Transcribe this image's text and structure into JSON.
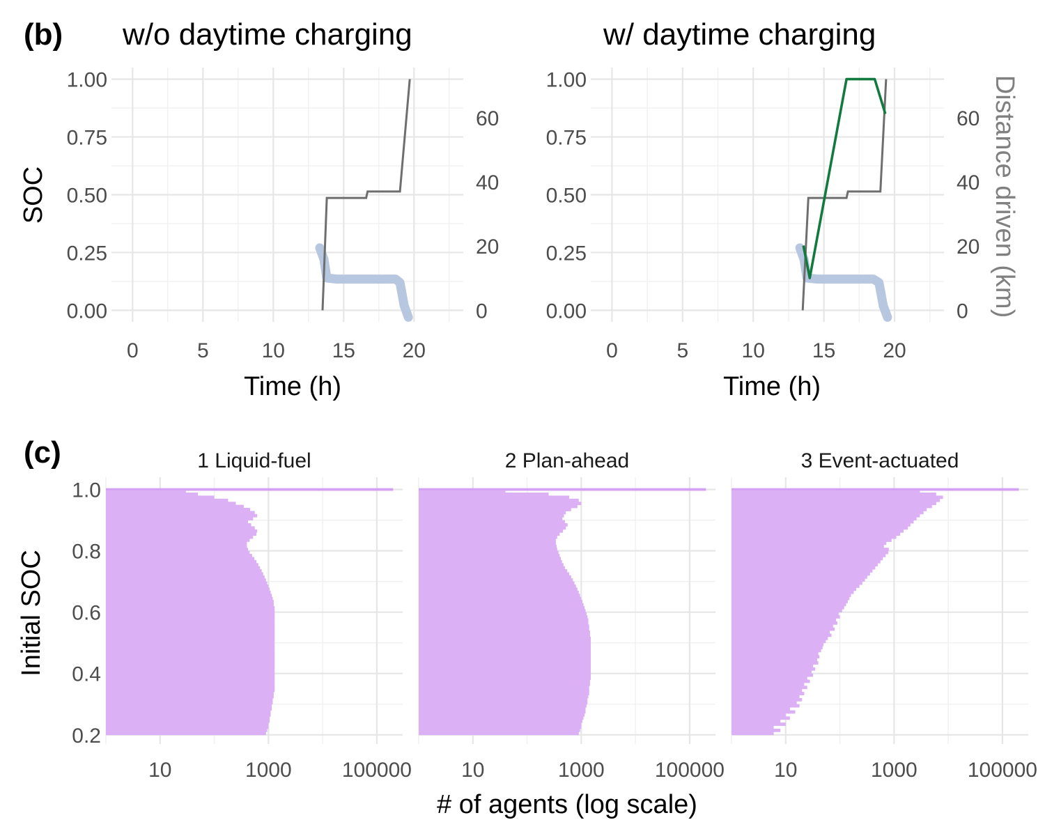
{
  "panels": {
    "b": {
      "tag": "(b)",
      "titles": [
        "w/o daytime charging",
        "w/ daytime charging"
      ],
      "ylabel": "SOC",
      "ylabel_right": "Distance driven (km)",
      "xlabel": "Time (h)"
    },
    "c": {
      "tag": "(c)",
      "ylabel": "Initial SOC",
      "xlabel": "# of agents (log scale)",
      "facets": [
        "1 Liquid-fuel",
        "2 Plan-ahead",
        "3 Event-actuated"
      ]
    }
  },
  "colors": {
    "soc_band": "#b8c7e0",
    "distance_line": "#6e6e6e",
    "charging_line": "#137a3f",
    "histogram_fill": "#dcb0f5",
    "histogram_edge": "#cf9ef0"
  },
  "chart_data": [
    {
      "type": "line",
      "panel": "(b) w/o daytime charging",
      "title": "w/o daytime charging",
      "xlabel": "Time (h)",
      "ylabel": "SOC",
      "ylabel_right": "Distance driven (km)",
      "xlim": [
        -1.5,
        23.5
      ],
      "ylim": [
        -0.05,
        1.05
      ],
      "y2lim": [
        -3.6,
        75.6
      ],
      "x_ticks": [
        0,
        5,
        10,
        15,
        20
      ],
      "y_ticks": [
        0.0,
        0.25,
        0.5,
        0.75,
        1.0
      ],
      "y_tick_labels": [
        "0.00",
        "0.25",
        "0.50",
        "0.75",
        "1.00"
      ],
      "y2_ticks": [
        0,
        20,
        40,
        60
      ],
      "grid": true,
      "series": [
        {
          "axis": "left",
          "style": "band",
          "x": [
            13.3,
            13.6,
            13.8,
            14.5,
            16.0,
            17.5,
            18.7,
            19.0,
            19.3,
            19.6
          ],
          "y": [
            0.27,
            0.22,
            0.14,
            0.135,
            0.135,
            0.135,
            0.135,
            0.12,
            0.02,
            -0.03
          ]
        },
        {
          "axis": "right",
          "style": "line",
          "x": [
            13.5,
            13.8,
            13.9,
            16.6,
            16.7,
            18.9,
            19.0,
            19.7
          ],
          "y": [
            0,
            35,
            35,
            35,
            37,
            37,
            37,
            72
          ]
        }
      ]
    },
    {
      "type": "line",
      "panel": "(b) w/ daytime charging",
      "title": "w/ daytime charging",
      "xlabel": "Time (h)",
      "ylabel": "SOC",
      "ylabel_right": "Distance driven (km)",
      "xlim": [
        -1.5,
        23.5
      ],
      "ylim": [
        -0.05,
        1.05
      ],
      "y2lim": [
        -3.6,
        75.6
      ],
      "x_ticks": [
        0,
        5,
        10,
        15,
        20
      ],
      "y_ticks": [
        0.0,
        0.25,
        0.5,
        0.75,
        1.0
      ],
      "y_tick_labels": [
        "0.00",
        "0.25",
        "0.50",
        "0.75",
        "1.00"
      ],
      "y2_ticks": [
        0,
        20,
        40,
        60
      ],
      "grid": true,
      "series": [
        {
          "axis": "left",
          "style": "band",
          "x": [
            13.3,
            13.6,
            13.8,
            14.5,
            16.0,
            17.5,
            18.5,
            18.9,
            19.2,
            19.5
          ],
          "y": [
            0.27,
            0.22,
            0.14,
            0.135,
            0.135,
            0.135,
            0.135,
            0.12,
            0.02,
            -0.03
          ]
        },
        {
          "axis": "right",
          "style": "line",
          "x": [
            13.5,
            13.9,
            14.0,
            16.6,
            16.7,
            18.9,
            19.0,
            19.4
          ],
          "y": [
            0,
            35,
            35,
            35,
            37,
            37,
            37,
            72
          ]
        },
        {
          "axis": "left",
          "style": "charging",
          "x": [
            13.55,
            14.0,
            16.6,
            18.6,
            19.35
          ],
          "y": [
            0.28,
            0.14,
            1.0,
            1.0,
            0.85
          ]
        }
      ]
    },
    {
      "type": "bar",
      "orientation": "horizontal",
      "panel": "(c) 1 Liquid-fuel",
      "title": "1 Liquid-fuel",
      "xlabel": "# of agents (log scale)",
      "ylabel": "Initial SOC",
      "x_scale": "log",
      "xlim": [
        1,
        300000
      ],
      "ylim": [
        0.17,
        1.04
      ],
      "x_ticks": [
        10,
        1000,
        100000
      ],
      "y_ticks": [
        0.2,
        0.4,
        0.6,
        0.8,
        1.0
      ],
      "grid": true,
      "bins": [
        0.2,
        0.21,
        0.22,
        0.23,
        0.24,
        0.25,
        0.26,
        0.27,
        0.28,
        0.29,
        0.3,
        0.31,
        0.32,
        0.33,
        0.34,
        0.35,
        0.36,
        0.37,
        0.38,
        0.39,
        0.4,
        0.41,
        0.42,
        0.43,
        0.44,
        0.45,
        0.46,
        0.47,
        0.48,
        0.49,
        0.5,
        0.51,
        0.52,
        0.53,
        0.54,
        0.55,
        0.56,
        0.57,
        0.58,
        0.59,
        0.6,
        0.61,
        0.62,
        0.63,
        0.64,
        0.65,
        0.66,
        0.67,
        0.68,
        0.69,
        0.7,
        0.71,
        0.72,
        0.73,
        0.74,
        0.75,
        0.76,
        0.77,
        0.78,
        0.79,
        0.8,
        0.81,
        0.82,
        0.83,
        0.84,
        0.85,
        0.86,
        0.87,
        0.88,
        0.89,
        0.9,
        0.91,
        0.92,
        0.93,
        0.94,
        0.95,
        0.96,
        0.97,
        0.98,
        0.99,
        1.0
      ],
      "values": [
        900,
        950,
        1000,
        1000,
        1050,
        1050,
        1100,
        1100,
        1150,
        1150,
        1200,
        1200,
        1250,
        1250,
        1300,
        1300,
        1300,
        1300,
        1300,
        1300,
        1300,
        1300,
        1300,
        1300,
        1300,
        1300,
        1300,
        1300,
        1300,
        1300,
        1300,
        1300,
        1300,
        1300,
        1300,
        1300,
        1300,
        1300,
        1300,
        1300,
        1300,
        1300,
        1250,
        1250,
        1200,
        1150,
        1100,
        1050,
        1000,
        950,
        900,
        850,
        800,
        750,
        700,
        650,
        600,
        550,
        500,
        450,
        420,
        400,
        400,
        450,
        520,
        600,
        620,
        560,
        480,
        420,
        520,
        620,
        560,
        460,
        350,
        250,
        180,
        100,
        50,
        30,
        200000
      ]
    },
    {
      "type": "bar",
      "orientation": "horizontal",
      "panel": "(c) 2 Plan-ahead",
      "title": "2 Plan-ahead",
      "xlabel": "# of agents (log scale)",
      "ylabel": "Initial SOC",
      "x_scale": "log",
      "xlim": [
        1,
        300000
      ],
      "ylim": [
        0.17,
        1.04
      ],
      "x_ticks": [
        10,
        1000,
        100000
      ],
      "y_ticks": [
        0.2,
        0.4,
        0.6,
        0.8,
        1.0
      ],
      "grid": true,
      "bins": [
        0.2,
        0.21,
        0.22,
        0.23,
        0.24,
        0.25,
        0.26,
        0.27,
        0.28,
        0.29,
        0.3,
        0.31,
        0.32,
        0.33,
        0.34,
        0.35,
        0.36,
        0.37,
        0.38,
        0.39,
        0.4,
        0.41,
        0.42,
        0.43,
        0.44,
        0.45,
        0.46,
        0.47,
        0.48,
        0.49,
        0.5,
        0.51,
        0.52,
        0.53,
        0.54,
        0.55,
        0.56,
        0.57,
        0.58,
        0.59,
        0.6,
        0.61,
        0.62,
        0.63,
        0.64,
        0.65,
        0.66,
        0.67,
        0.68,
        0.69,
        0.7,
        0.71,
        0.72,
        0.73,
        0.74,
        0.75,
        0.76,
        0.77,
        0.78,
        0.79,
        0.8,
        0.81,
        0.82,
        0.83,
        0.84,
        0.85,
        0.86,
        0.87,
        0.88,
        0.89,
        0.9,
        0.91,
        0.92,
        0.93,
        0.94,
        0.95,
        0.96,
        0.97,
        0.98,
        0.99,
        1.0
      ],
      "values": [
        900,
        950,
        1000,
        1000,
        1050,
        1100,
        1150,
        1200,
        1200,
        1250,
        1300,
        1300,
        1350,
        1400,
        1400,
        1400,
        1450,
        1450,
        1500,
        1500,
        1500,
        1500,
        1500,
        1500,
        1500,
        1500,
        1500,
        1500,
        1500,
        1500,
        1500,
        1500,
        1450,
        1450,
        1400,
        1400,
        1350,
        1350,
        1300,
        1250,
        1200,
        1150,
        1100,
        1050,
        1000,
        950,
        900,
        850,
        800,
        750,
        700,
        650,
        600,
        550,
        500,
        470,
        440,
        420,
        400,
        380,
        360,
        350,
        340,
        340,
        360,
        400,
        460,
        520,
        560,
        500,
        450,
        480,
        520,
        650,
        850,
        1000,
        900,
        600,
        250,
        40,
        200000
      ]
    },
    {
      "type": "bar",
      "orientation": "horizontal",
      "panel": "(c) 3 Event-actuated",
      "title": "3 Event-actuated",
      "xlabel": "# of agents (log scale)",
      "ylabel": "Initial SOC",
      "x_scale": "log",
      "xlim": [
        1,
        300000
      ],
      "ylim": [
        0.17,
        1.04
      ],
      "x_ticks": [
        10,
        1000,
        100000
      ],
      "y_ticks": [
        0.2,
        0.4,
        0.6,
        0.8,
        1.0
      ],
      "grid": true,
      "bins": [
        0.2,
        0.21,
        0.22,
        0.23,
        0.24,
        0.25,
        0.26,
        0.27,
        0.28,
        0.29,
        0.3,
        0.31,
        0.32,
        0.33,
        0.34,
        0.35,
        0.36,
        0.37,
        0.38,
        0.39,
        0.4,
        0.41,
        0.42,
        0.43,
        0.44,
        0.45,
        0.46,
        0.47,
        0.48,
        0.49,
        0.5,
        0.51,
        0.52,
        0.53,
        0.54,
        0.55,
        0.56,
        0.57,
        0.58,
        0.59,
        0.6,
        0.61,
        0.62,
        0.63,
        0.64,
        0.65,
        0.66,
        0.67,
        0.68,
        0.69,
        0.7,
        0.71,
        0.72,
        0.73,
        0.74,
        0.75,
        0.76,
        0.77,
        0.78,
        0.79,
        0.8,
        0.81,
        0.82,
        0.83,
        0.84,
        0.85,
        0.86,
        0.87,
        0.88,
        0.89,
        0.9,
        0.91,
        0.92,
        0.93,
        0.94,
        0.95,
        0.96,
        0.97,
        0.98,
        0.99,
        1.0
      ],
      "values": [
        6,
        8,
        6,
        10,
        8,
        12,
        10,
        15,
        12,
        18,
        16,
        20,
        18,
        22,
        20,
        25,
        22,
        28,
        25,
        32,
        30,
        35,
        32,
        40,
        38,
        42,
        40,
        45,
        48,
        50,
        55,
        60,
        70,
        65,
        80,
        75,
        90,
        85,
        100,
        95,
        110,
        120,
        130,
        140,
        150,
        160,
        180,
        200,
        230,
        260,
        290,
        320,
        360,
        400,
        450,
        500,
        560,
        620,
        700,
        780,
        800,
        650,
        720,
        900,
        1100,
        1300,
        1500,
        1800,
        2000,
        2300,
        2600,
        3000,
        3500,
        4000,
        5000,
        6000,
        7000,
        8000,
        6000,
        3000,
        200000
      ]
    }
  ]
}
